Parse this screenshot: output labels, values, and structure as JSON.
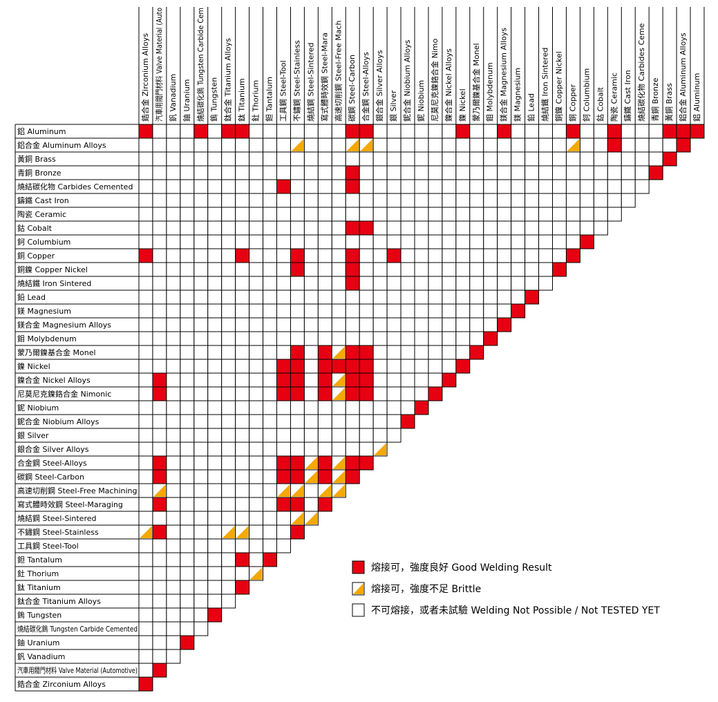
{
  "columns": [
    "鋯合金  Zirconium Alloys",
    "汽車用閥門材料 Valve Material (Auto",
    "釩  Vanadium",
    "鈾  Uranium",
    "燒結碳化鎢 Tungsten Carbide Cem",
    "鎢  Tungsten",
    "鈦合金  Titanium Alloys",
    "鈦  Titanium",
    "釷  Thorium",
    "鉭  Tantalum",
    "工具鋼  Steel-Tool",
    "不鏽鋼  Steel-Stainless",
    "燒結鋼  Steel-Sintered",
    "寫式體時效鋼  Steel-Mara",
    "高速切削鋼  Steel-Free Mach",
    "碳鋼  Steel-Carbon",
    "合金鋼  Steel-Alloys",
    "銀合金  Silver Alloys",
    "銀  Silver",
    "鈮合金  Niobium Alloys",
    "鈮  Niobium",
    "尼莫尼克鎳鉻合金  Nimo",
    "鎳合金  Nickel Alloys",
    "鎳  Nickel",
    "蒙乃爾鎳基合金  Monel",
    "鉬  Molybdenum",
    "鎂合金  Magnesium Alloys",
    "鎂  Magnesium",
    "鉛  Lead",
    "燒結鐵  Iron Sintered",
    "銅鎳  Copper Nickel",
    "銅  Copper",
    "鈳  Columbium",
    "鈷  Cobalt",
    "陶瓷  Ceramic",
    "鑄鐵  Cast Iron",
    "燒結碳化物  Carbides Ceme",
    "青銅  Bronze",
    "黃銅  Brass",
    "鋁合金  Aluminum Alloys",
    "鋁  Aluminum"
  ],
  "rows": [
    {
      "label": "鋁  Aluminum",
      "cells": [
        2,
        0,
        0,
        0,
        2,
        0,
        2,
        2,
        0,
        0,
        0,
        0,
        0,
        0,
        0,
        2,
        2,
        0,
        0,
        0,
        0,
        0,
        0,
        2,
        0,
        0,
        2,
        0,
        0,
        0,
        0,
        2,
        0,
        0,
        2,
        0,
        0,
        0,
        2,
        2,
        2
      ]
    },
    {
      "label": "鋁合金  Aluminum Alloys",
      "cells": [
        0,
        0,
        0,
        0,
        0,
        0,
        0,
        0,
        0,
        0,
        0,
        1,
        0,
        0,
        0,
        1,
        1,
        0,
        0,
        0,
        0,
        0,
        0,
        0,
        0,
        0,
        0,
        0,
        0,
        0,
        0,
        1,
        0,
        0,
        2,
        0,
        0,
        0,
        0,
        2
      ]
    },
    {
      "label": "黃銅  Brass",
      "cells": [
        0,
        0,
        0,
        0,
        0,
        0,
        0,
        0,
        0,
        0,
        0,
        0,
        0,
        0,
        0,
        0,
        0,
        0,
        0,
        0,
        0,
        0,
        0,
        0,
        0,
        0,
        0,
        0,
        0,
        0,
        0,
        0,
        0,
        0,
        0,
        0,
        0,
        0,
        2
      ]
    },
    {
      "label": "青銅  Bronze",
      "cells": [
        0,
        0,
        0,
        0,
        0,
        0,
        0,
        0,
        0,
        0,
        0,
        0,
        0,
        0,
        0,
        2,
        0,
        0,
        0,
        0,
        0,
        0,
        0,
        0,
        0,
        0,
        0,
        0,
        0,
        0,
        0,
        0,
        0,
        0,
        0,
        0,
        0,
        2
      ]
    },
    {
      "label": "燒結碳化物  Carbides Cemented",
      "cells": [
        0,
        0,
        0,
        0,
        0,
        0,
        0,
        0,
        0,
        0,
        2,
        0,
        0,
        0,
        0,
        2,
        0,
        0,
        0,
        0,
        0,
        0,
        0,
        0,
        0,
        0,
        0,
        0,
        0,
        0,
        0,
        0,
        0,
        0,
        0,
        0,
        0
      ]
    },
    {
      "label": "鑄鐵  Cast Iron",
      "cells": [
        0,
        0,
        0,
        0,
        0,
        0,
        0,
        0,
        0,
        0,
        0,
        0,
        0,
        0,
        0,
        0,
        0,
        0,
        0,
        0,
        0,
        0,
        0,
        0,
        0,
        0,
        0,
        0,
        0,
        0,
        0,
        0,
        0,
        0,
        0,
        0
      ]
    },
    {
      "label": "陶瓷  Ceramic",
      "cells": [
        0,
        0,
        0,
        0,
        0,
        0,
        0,
        0,
        0,
        0,
        0,
        0,
        0,
        0,
        0,
        0,
        0,
        0,
        0,
        0,
        0,
        0,
        0,
        0,
        0,
        0,
        0,
        0,
        0,
        0,
        0,
        0,
        0,
        0,
        0
      ]
    },
    {
      "label": "鈷  Cobalt",
      "cells": [
        0,
        0,
        0,
        0,
        0,
        0,
        0,
        0,
        0,
        0,
        0,
        0,
        0,
        0,
        0,
        2,
        2,
        0,
        0,
        0,
        0,
        0,
        0,
        0,
        0,
        0,
        0,
        0,
        0,
        0,
        0,
        0,
        0,
        0
      ]
    },
    {
      "label": "鈳  Columbium",
      "cells": [
        0,
        0,
        0,
        0,
        0,
        0,
        0,
        0,
        0,
        0,
        0,
        0,
        0,
        0,
        0,
        0,
        0,
        0,
        0,
        0,
        0,
        0,
        0,
        0,
        0,
        0,
        0,
        0,
        0,
        0,
        0,
        0,
        2
      ]
    },
    {
      "label": "銅  Copper",
      "cells": [
        2,
        0,
        0,
        0,
        0,
        0,
        0,
        2,
        0,
        0,
        0,
        2,
        0,
        0,
        0,
        2,
        0,
        0,
        2,
        0,
        0,
        0,
        0,
        0,
        0,
        0,
        0,
        0,
        0,
        0,
        0,
        2
      ]
    },
    {
      "label": "銅鎳  Copper Nickel",
      "cells": [
        0,
        0,
        0,
        0,
        0,
        0,
        0,
        0,
        0,
        0,
        0,
        2,
        0,
        0,
        0,
        2,
        0,
        0,
        0,
        0,
        0,
        0,
        0,
        0,
        0,
        0,
        0,
        0,
        0,
        0,
        2
      ]
    },
    {
      "label": "燒結鐵  Iron Sintered",
      "cells": [
        0,
        0,
        0,
        0,
        0,
        0,
        0,
        0,
        0,
        0,
        0,
        0,
        0,
        0,
        0,
        2,
        0,
        0,
        0,
        0,
        0,
        0,
        0,
        0,
        0,
        0,
        0,
        0,
        0,
        0
      ]
    },
    {
      "label": "鉛  Lead",
      "cells": [
        0,
        0,
        0,
        0,
        0,
        0,
        0,
        0,
        0,
        0,
        0,
        0,
        0,
        0,
        0,
        0,
        0,
        0,
        0,
        0,
        0,
        0,
        0,
        0,
        0,
        0,
        0,
        0,
        2
      ]
    },
    {
      "label": "鎂  Magnesium",
      "cells": [
        0,
        0,
        0,
        0,
        0,
        0,
        0,
        0,
        0,
        0,
        0,
        0,
        0,
        0,
        0,
        0,
        0,
        0,
        0,
        0,
        0,
        0,
        0,
        0,
        0,
        0,
        0,
        2
      ]
    },
    {
      "label": "鎂合金  Magnesium Alloys",
      "cells": [
        0,
        0,
        0,
        0,
        0,
        0,
        0,
        0,
        0,
        0,
        0,
        0,
        0,
        0,
        0,
        0,
        0,
        0,
        0,
        0,
        0,
        0,
        0,
        0,
        0,
        0,
        2
      ]
    },
    {
      "label": "鉬  Molybdenum",
      "cells": [
        0,
        0,
        0,
        0,
        0,
        0,
        0,
        0,
        0,
        0,
        0,
        0,
        0,
        0,
        0,
        0,
        0,
        0,
        0,
        0,
        0,
        0,
        0,
        0,
        0,
        2
      ]
    },
    {
      "label": "蒙乃爾鎳基合金  Monel",
      "cells": [
        0,
        0,
        0,
        0,
        0,
        0,
        0,
        0,
        0,
        0,
        0,
        2,
        0,
        2,
        1,
        2,
        2,
        0,
        0,
        0,
        0,
        0,
        0,
        0,
        2
      ]
    },
    {
      "label": "鎳  Nickel",
      "cells": [
        0,
        0,
        0,
        0,
        0,
        0,
        0,
        0,
        0,
        0,
        2,
        2,
        0,
        2,
        2,
        2,
        2,
        0,
        0,
        0,
        0,
        0,
        0,
        2
      ]
    },
    {
      "label": "鎳合金  Nickel Alloys",
      "cells": [
        0,
        2,
        0,
        0,
        0,
        0,
        0,
        0,
        0,
        0,
        2,
        2,
        0,
        2,
        1,
        2,
        2,
        0,
        0,
        0,
        0,
        0,
        2
      ]
    },
    {
      "label": "尼莫尼克鎳鉻合金  Nimonic",
      "cells": [
        0,
        2,
        0,
        0,
        0,
        0,
        0,
        0,
        0,
        0,
        2,
        2,
        0,
        2,
        1,
        2,
        2,
        0,
        0,
        0,
        0,
        2
      ]
    },
    {
      "label": "鈮  Niobium",
      "cells": [
        0,
        0,
        0,
        0,
        0,
        0,
        0,
        0,
        0,
        0,
        0,
        0,
        0,
        0,
        0,
        0,
        0,
        0,
        0,
        0,
        2
      ]
    },
    {
      "label": "鈮合金  Niobium Alloys",
      "cells": [
        0,
        0,
        0,
        0,
        0,
        0,
        0,
        0,
        0,
        0,
        0,
        0,
        0,
        0,
        0,
        0,
        0,
        0,
        0,
        2
      ]
    },
    {
      "label": "銀  Silver",
      "cells": [
        0,
        0,
        0,
        0,
        0,
        0,
        0,
        0,
        0,
        0,
        0,
        0,
        0,
        0,
        0,
        0,
        0,
        0,
        0
      ]
    },
    {
      "label": "銀合金  Silver Alloys",
      "cells": [
        0,
        0,
        0,
        0,
        0,
        0,
        0,
        0,
        0,
        0,
        0,
        0,
        0,
        0,
        0,
        0,
        0,
        1
      ]
    },
    {
      "label": "合金鋼  Steel-Alloys",
      "cells": [
        0,
        2,
        0,
        0,
        0,
        0,
        0,
        0,
        0,
        0,
        2,
        2,
        1,
        2,
        1,
        2,
        2
      ]
    },
    {
      "label": "碳鋼  Steel-Carbon",
      "cells": [
        0,
        2,
        0,
        0,
        0,
        0,
        0,
        0,
        0,
        0,
        2,
        2,
        1,
        2,
        1,
        2
      ]
    },
    {
      "label": "高速切削鋼  Steel-Free Machining",
      "cells": [
        0,
        1,
        0,
        0,
        0,
        0,
        0,
        0,
        0,
        0,
        1,
        1,
        0,
        1,
        1
      ]
    },
    {
      "label": "寫式體時效鋼  Steel-Maraging",
      "cells": [
        0,
        2,
        0,
        0,
        0,
        0,
        0,
        0,
        0,
        0,
        2,
        2,
        0,
        2
      ]
    },
    {
      "label": "燒結鋼  Steel-Sintered",
      "cells": [
        0,
        0,
        0,
        0,
        0,
        0,
        0,
        0,
        0,
        0,
        0,
        1,
        1
      ]
    },
    {
      "label": "不鏽鋼  Steel-Stainless",
      "cells": [
        1,
        2,
        0,
        0,
        0,
        0,
        1,
        1,
        0,
        0,
        0,
        2
      ]
    },
    {
      "label": "工具鋼  Steel-Tool",
      "cells": [
        0,
        0,
        0,
        0,
        0,
        0,
        0,
        0,
        0,
        0,
        0
      ]
    },
    {
      "label": "鉭  Tantalum",
      "cells": [
        0,
        0,
        0,
        0,
        0,
        0,
        0,
        2,
        0,
        2
      ]
    },
    {
      "label": "釷  Thorium",
      "cells": [
        0,
        0,
        0,
        0,
        0,
        0,
        0,
        0,
        1
      ]
    },
    {
      "label": "鈦  Titanium",
      "cells": [
        0,
        0,
        0,
        0,
        0,
        0,
        0,
        2
      ]
    },
    {
      "label": "鈦合金  Titanium Alloys",
      "cells": [
        0,
        0,
        0,
        0,
        0,
        0,
        0
      ]
    },
    {
      "label": "鎢  Tungsten",
      "cells": [
        0,
        0,
        0,
        0,
        0,
        2
      ]
    },
    {
      "label": "燒結碳化鎢  Tungsten Carbide Cemented",
      "cells": [
        0,
        0,
        0,
        0,
        0
      ]
    },
    {
      "label": "鈾  Uranium",
      "cells": [
        0,
        0,
        0,
        2
      ]
    },
    {
      "label": "釩  Vanadium",
      "cells": [
        0,
        0,
        0
      ]
    },
    {
      "label": "汽車用閥門材料  Valve Material (Automotive)",
      "cells": [
        0,
        2
      ]
    },
    {
      "label": "鋯合金  Zirconium Alloys",
      "cells": [
        2
      ]
    }
  ],
  "legend": [
    {
      "code": 2,
      "label": "熔接可，強度良好  Good Welding Result"
    },
    {
      "code": 1,
      "label": "熔接可，強度不足  Brittle"
    },
    {
      "code": 0,
      "label": "不可熔接，或者未試驗  Welding Not Possible / Not TESTED YET"
    }
  ]
}
